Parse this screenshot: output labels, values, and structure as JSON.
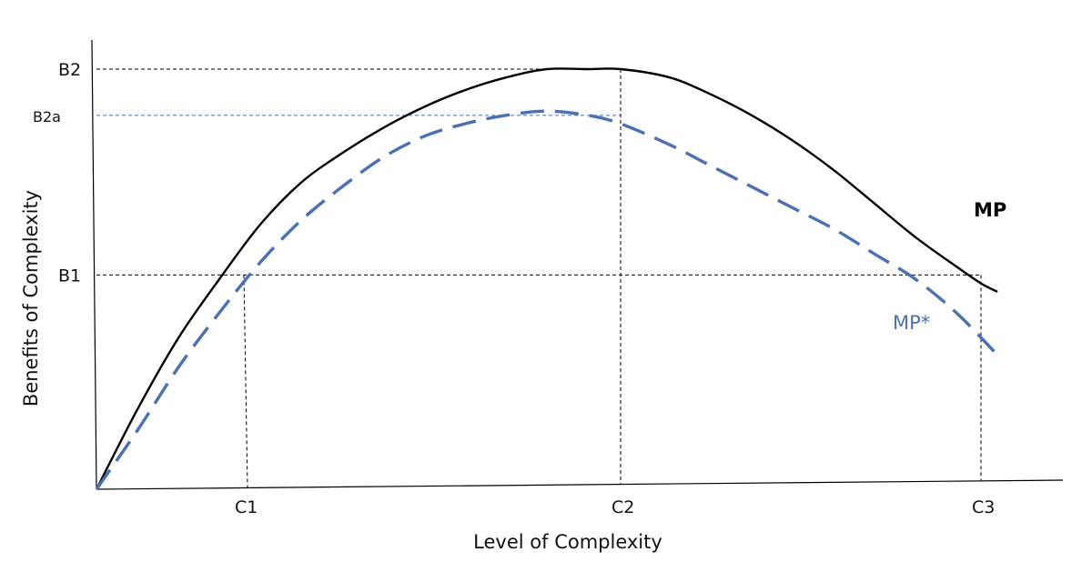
{
  "chart_data": {
    "type": "line",
    "title": "",
    "xlabel": "Level of Complexity",
    "ylabel": "Benefits of Complexity",
    "xlim": [
      0,
      1.1
    ],
    "ylim": [
      0,
      1.04
    ],
    "grid": false,
    "legend": "none",
    "x_ticks": [
      {
        "label": "C1",
        "value": 0.18
      },
      {
        "label": "C2",
        "value": 0.64
      },
      {
        "label": "C3",
        "value": 1.08
      }
    ],
    "y_ticks": [
      {
        "label": "B2",
        "value": 1.0,
        "color": "#111111"
      },
      {
        "label": "B2a",
        "value": 0.89,
        "color": "#4a70b5"
      },
      {
        "label": "B1",
        "value": 0.51,
        "color": "#111111"
      }
    ],
    "series": [
      {
        "name": "MP",
        "color": "#000000",
        "style": "solid",
        "x": [
          0,
          0.05,
          0.1,
          0.15,
          0.2,
          0.25,
          0.3,
          0.35,
          0.4,
          0.45,
          0.5,
          0.55,
          0.6,
          0.64,
          0.7,
          0.75,
          0.8,
          0.85,
          0.9,
          0.95,
          1.0,
          1.05,
          1.08,
          1.1
        ],
        "values": [
          0,
          0.19,
          0.36,
          0.5,
          0.63,
          0.73,
          0.8,
          0.86,
          0.91,
          0.95,
          0.98,
          1.0,
          1.0,
          1.0,
          0.98,
          0.94,
          0.89,
          0.83,
          0.76,
          0.68,
          0.6,
          0.53,
          0.49,
          0.47
        ]
      },
      {
        "name": "MP*",
        "color": "#4a70b5",
        "style": "dashed",
        "x": [
          0,
          0.05,
          0.1,
          0.15,
          0.2,
          0.25,
          0.3,
          0.35,
          0.4,
          0.45,
          0.5,
          0.55,
          0.6,
          0.64,
          0.7,
          0.75,
          0.8,
          0.85,
          0.9,
          0.95,
          1.0,
          1.05,
          1.1
        ],
        "values": [
          0,
          0.14,
          0.29,
          0.42,
          0.54,
          0.64,
          0.72,
          0.79,
          0.84,
          0.87,
          0.89,
          0.9,
          0.89,
          0.87,
          0.82,
          0.77,
          0.72,
          0.67,
          0.62,
          0.56,
          0.5,
          0.42,
          0.32
        ]
      }
    ]
  }
}
